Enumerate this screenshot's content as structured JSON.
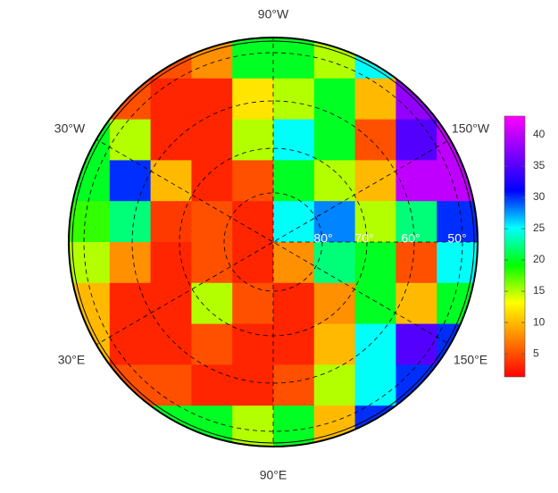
{
  "map": {
    "longitude_labels": [
      "90°W",
      "30°W",
      "150°W",
      "30°E",
      "150°E",
      "90°E"
    ],
    "latitude_labels": [
      "80°",
      "70°",
      "60°",
      "50°"
    ],
    "grid": [
      [
        5,
        5,
        5,
        8,
        20,
        20,
        15,
        25,
        40,
        40
      ],
      [
        5,
        5,
        3,
        3,
        12,
        15,
        20,
        10,
        38,
        40
      ],
      [
        20,
        15,
        3,
        3,
        15,
        25,
        20,
        5,
        35,
        40
      ],
      [
        20,
        30,
        10,
        3,
        5,
        20,
        15,
        10,
        40,
        40
      ],
      [
        18,
        22,
        4,
        5,
        3,
        25,
        28,
        15,
        22,
        30
      ],
      [
        15,
        8,
        3,
        5,
        3,
        8,
        22,
        20,
        5,
        25
      ],
      [
        10,
        3,
        3,
        15,
        5,
        3,
        8,
        20,
        10,
        20
      ],
      [
        10,
        3,
        3,
        5,
        3,
        3,
        10,
        25,
        35,
        30
      ],
      [
        15,
        5,
        5,
        3,
        3,
        5,
        15,
        25,
        30,
        30
      ],
      [
        20,
        35,
        20,
        20,
        15,
        20,
        10,
        30,
        35,
        30
      ]
    ],
    "colorbar": {
      "lim": [
        1.3,
        43
      ],
      "ticks": [
        5,
        10,
        15,
        20,
        25,
        30,
        35,
        40
      ],
      "colormap": [
        "#ff0000",
        "#ff8000",
        "#ffff00",
        "#00ff00",
        "#00ffff",
        "#0000ff",
        "#8000ff",
        "#ff00ff"
      ]
    }
  }
}
